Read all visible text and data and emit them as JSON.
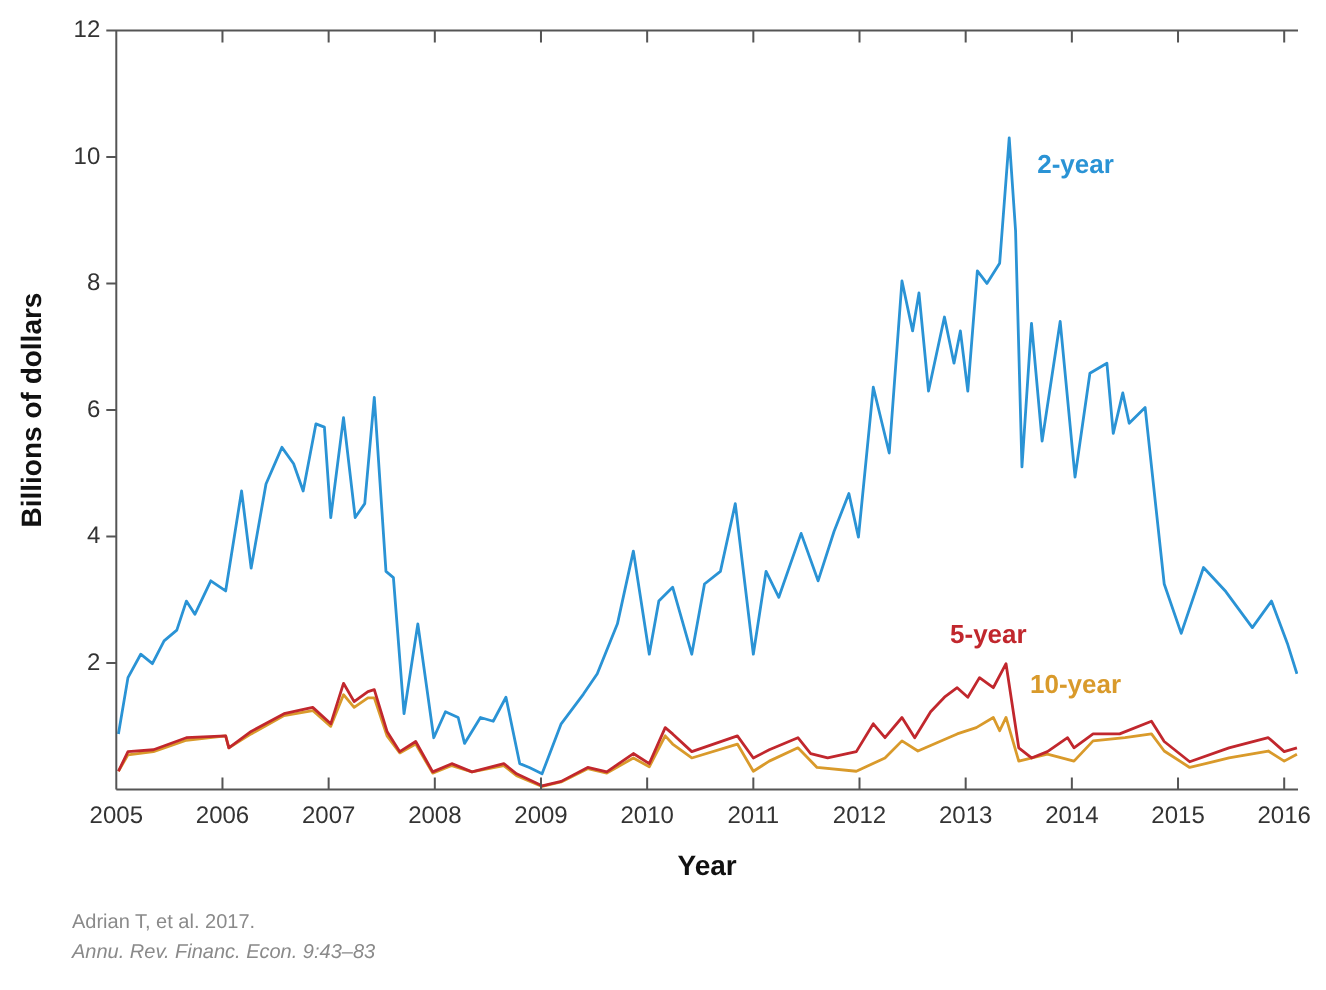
{
  "chart_data": {
    "type": "line",
    "xlabel": "Year",
    "ylabel": "Billions of dollars",
    "xlim": [
      2005,
      2016.13
    ],
    "xticks": [
      2005,
      2006,
      2007,
      2008,
      2009,
      2010,
      2011,
      2012,
      2013,
      2014,
      2015,
      2016
    ],
    "ylim": [
      0,
      12
    ],
    "yticks": [
      2,
      4,
      6,
      8,
      10,
      12
    ],
    "series": [
      {
        "name": "2-year",
        "color": "#2a93d5",
        "x": [
          2005.02,
          2005.11,
          2005.23,
          2005.34,
          2005.45,
          2005.57,
          2005.66,
          2005.74,
          2005.89,
          2006.03,
          2006.18,
          2006.27,
          2006.41,
          2006.56,
          2006.67,
          2006.76,
          2006.88,
          2006.96,
          2007.02,
          2007.14,
          2007.25,
          2007.34,
          2007.43,
          2007.54,
          2007.61,
          2007.71,
          2007.84,
          2007.99,
          2008.1,
          2008.22,
          2008.28,
          2008.43,
          2008.55,
          2008.67,
          2008.8,
          2008.89,
          2009.01,
          2009.19,
          2009.4,
          2009.53,
          2009.72,
          2009.87,
          2010.02,
          2010.11,
          2010.24,
          2010.42,
          2010.54,
          2010.69,
          2010.83,
          2011.0,
          2011.12,
          2011.24,
          2011.45,
          2011.61,
          2011.76,
          2011.9,
          2011.99,
          2012.13,
          2012.28,
          2012.4,
          2012.5,
          2012.56,
          2012.65,
          2012.8,
          2012.89,
          2012.95,
          2013.02,
          2013.11,
          2013.2,
          2013.32,
          2013.41,
          2013.47,
          2013.53,
          2013.62,
          2013.72,
          2013.89,
          2014.03,
          2014.17,
          2014.33,
          2014.39,
          2014.48,
          2014.54,
          2014.69,
          2014.87,
          2015.03,
          2015.24,
          2015.45,
          2015.7,
          2015.88,
          2016.03,
          2016.12
        ],
        "values": [
          0.88,
          1.77,
          2.14,
          1.99,
          2.35,
          2.52,
          2.98,
          2.77,
          3.3,
          3.14,
          4.72,
          3.5,
          4.83,
          5.41,
          5.15,
          4.72,
          5.78,
          5.73,
          4.3,
          5.88,
          4.3,
          4.52,
          6.2,
          3.45,
          3.35,
          1.2,
          2.62,
          0.82,
          1.23,
          1.14,
          0.73,
          1.14,
          1.08,
          1.46,
          0.41,
          0.35,
          0.25,
          1.04,
          1.51,
          1.83,
          2.62,
          3.77,
          2.14,
          2.98,
          3.2,
          2.14,
          3.25,
          3.45,
          4.52,
          2.14,
          3.45,
          3.04,
          4.05,
          3.3,
          4.08,
          4.68,
          3.99,
          6.36,
          5.32,
          8.04,
          7.25,
          7.85,
          6.3,
          7.47,
          6.74,
          7.25,
          6.3,
          8.2,
          8.0,
          8.32,
          10.3,
          8.83,
          5.1,
          7.37,
          5.51,
          7.4,
          4.94,
          6.58,
          6.74,
          5.63,
          6.27,
          5.79,
          6.04,
          3.25,
          2.47,
          3.51,
          3.13,
          2.56,
          2.98,
          2.31,
          1.83
        ]
      },
      {
        "name": "5-year",
        "color": "#c1272d",
        "x": [
          2005.02,
          2005.11,
          2005.35,
          2005.66,
          2006.03,
          2006.06,
          2006.27,
          2006.58,
          2006.85,
          2007.02,
          2007.14,
          2007.24,
          2007.37,
          2007.43,
          2007.55,
          2007.67,
          2007.82,
          2007.98,
          2008.16,
          2008.35,
          2008.65,
          2008.77,
          2009.01,
          2009.19,
          2009.44,
          2009.62,
          2009.87,
          2010.02,
          2010.17,
          2010.24,
          2010.42,
          2010.85,
          2011.0,
          2011.15,
          2011.42,
          2011.54,
          2011.7,
          2011.97,
          2012.13,
          2012.24,
          2012.4,
          2012.52,
          2012.67,
          2012.8,
          2012.92,
          2013.02,
          2013.13,
          2013.26,
          2013.38,
          2013.5,
          2013.62,
          2013.77,
          2013.96,
          2014.02,
          2014.2,
          2014.45,
          2014.75,
          2014.87,
          2015.11,
          2015.48,
          2015.85,
          2016.0,
          2016.12
        ],
        "values": [
          0.29,
          0.6,
          0.63,
          0.82,
          0.85,
          0.66,
          0.92,
          1.2,
          1.3,
          1.04,
          1.68,
          1.39,
          1.55,
          1.58,
          0.92,
          0.6,
          0.76,
          0.28,
          0.41,
          0.28,
          0.41,
          0.25,
          0.06,
          0.13,
          0.35,
          0.28,
          0.57,
          0.41,
          0.98,
          0.88,
          0.6,
          0.85,
          0.5,
          0.63,
          0.82,
          0.57,
          0.5,
          0.6,
          1.04,
          0.82,
          1.14,
          0.82,
          1.23,
          1.46,
          1.61,
          1.46,
          1.77,
          1.61,
          1.99,
          0.66,
          0.5,
          0.6,
          0.82,
          0.66,
          0.88,
          0.88,
          1.08,
          0.76,
          0.44,
          0.66,
          0.82,
          0.6,
          0.66
        ]
      },
      {
        "name": "10-year",
        "color": "#d99a2b",
        "x": [
          2005.02,
          2005.11,
          2005.35,
          2005.66,
          2006.03,
          2006.06,
          2006.27,
          2006.58,
          2006.85,
          2007.02,
          2007.14,
          2007.24,
          2007.37,
          2007.43,
          2007.55,
          2007.67,
          2007.82,
          2007.98,
          2008.16,
          2008.35,
          2008.65,
          2008.77,
          2009.01,
          2009.19,
          2009.44,
          2009.62,
          2009.87,
          2010.02,
          2010.17,
          2010.24,
          2010.42,
          2010.85,
          2011.0,
          2011.15,
          2011.42,
          2011.6,
          2011.97,
          2012.24,
          2012.4,
          2012.55,
          2012.92,
          2013.1,
          2013.26,
          2013.32,
          2013.38,
          2013.5,
          2013.77,
          2014.02,
          2014.2,
          2014.5,
          2014.75,
          2014.87,
          2015.11,
          2015.48,
          2015.85,
          2016.0,
          2016.12
        ],
        "values": [
          0.29,
          0.55,
          0.6,
          0.78,
          0.85,
          0.66,
          0.88,
          1.17,
          1.25,
          1.0,
          1.5,
          1.3,
          1.45,
          1.45,
          0.85,
          0.58,
          0.72,
          0.26,
          0.38,
          0.28,
          0.38,
          0.22,
          0.05,
          0.12,
          0.33,
          0.26,
          0.5,
          0.36,
          0.85,
          0.72,
          0.5,
          0.72,
          0.29,
          0.45,
          0.66,
          0.35,
          0.29,
          0.5,
          0.77,
          0.61,
          0.88,
          0.98,
          1.14,
          0.93,
          1.14,
          0.45,
          0.56,
          0.45,
          0.77,
          0.82,
          0.88,
          0.61,
          0.35,
          0.5,
          0.61,
          0.45,
          0.56
        ]
      }
    ],
    "annotations": [
      "Adrian T, et al. 2017.",
      "Annu. Rev. Financ. Econ. 9:43–83"
    ]
  }
}
